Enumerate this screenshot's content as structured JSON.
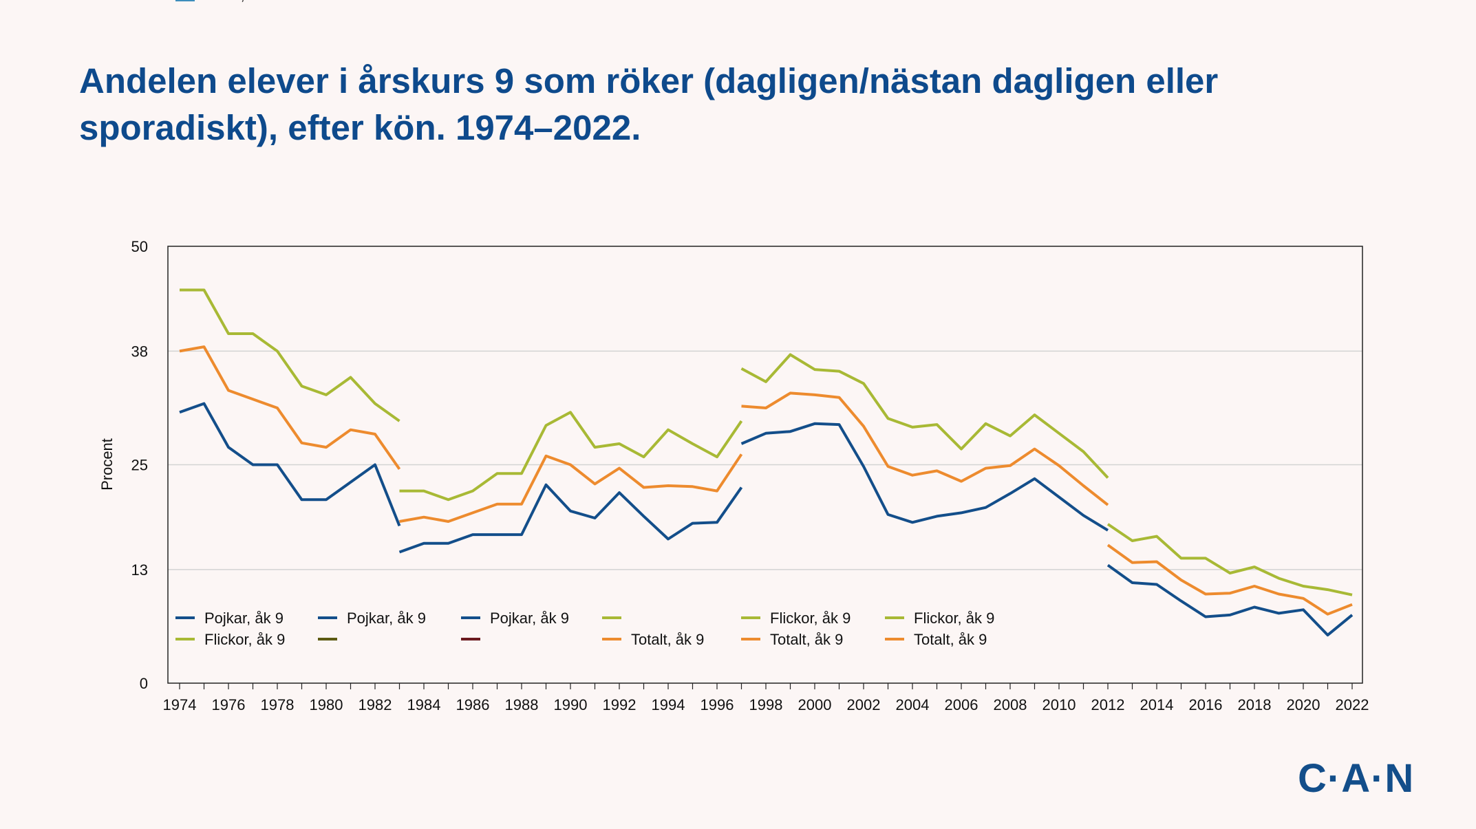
{
  "title": "Andelen elever i årskurs 9 som röker (dagligen/nästan dagligen eller sporadiskt), efter kön. 1974–2022.",
  "logo": "C·A·N",
  "colors": {
    "background": "#fcf6f5",
    "title": "#0e4a8c",
    "pojkar": "#134e8a",
    "flickor": "#a8b935",
    "totalt": "#ed8b2e",
    "grid": "#d3d3d3"
  },
  "chart_data": {
    "type": "line",
    "xlabel": "",
    "ylabel": "Procent",
    "xlim": [
      1974,
      2022
    ],
    "ylim": [
      0,
      50
    ],
    "yticks": [
      0,
      13,
      25,
      38,
      50
    ],
    "xticks": [
      1974,
      1976,
      1978,
      1980,
      1982,
      1984,
      1986,
      1988,
      1990,
      1992,
      1994,
      1996,
      1998,
      2000,
      2002,
      2004,
      2006,
      2008,
      2010,
      2012,
      2014,
      2016,
      2018,
      2020,
      2022
    ],
    "grid": true,
    "legend_position": "bottom-left inside plot",
    "series": [
      {
        "name": "Pojkar, åk 9",
        "color": "#134e8a",
        "x": [
          1974,
          1975,
          1976,
          1977,
          1978,
          1979,
          1980,
          1981,
          1982,
          1983
        ],
        "y": [
          31,
          32,
          27,
          25,
          25,
          21,
          21,
          23,
          25,
          18
        ]
      },
      {
        "name": "Pojkar, åk 9",
        "color": "#134e8a",
        "x": [
          1983,
          1984,
          1985,
          1986,
          1987,
          1988,
          1989,
          1990,
          1991,
          1992,
          1993,
          1994,
          1995,
          1996,
          1997
        ],
        "y": [
          15,
          16,
          16,
          17,
          17,
          17,
          22.7,
          19.7,
          18.9,
          21.8,
          19.1,
          16.5,
          18.3,
          18.4,
          22.4
        ]
      },
      {
        "name": "Pojkar, åk 9",
        "color": "#134e8a",
        "x": [
          1997,
          1998,
          1999,
          2000,
          2001,
          2002,
          2003,
          2004,
          2005,
          2006,
          2007,
          2008,
          2009,
          2010,
          2011,
          2012
        ],
        "y": [
          27.4,
          28.6,
          28.8,
          29.7,
          29.6,
          24.8,
          19.3,
          18.4,
          19.1,
          19.5,
          20.1,
          21.7,
          23.4,
          21.3,
          19.2,
          17.5
        ]
      },
      {
        "name": "",
        "color": "#a8b935",
        "x": [],
        "y": []
      },
      {
        "name": "Flickor, åk 9",
        "color": "#a8b935",
        "x": [
          1974,
          1975,
          1976,
          1977,
          1978,
          1979,
          1980,
          1981,
          1982,
          1983
        ],
        "y": [
          45,
          45,
          40,
          40,
          38,
          34,
          33,
          35,
          32,
          30
        ]
      },
      {
        "name": "Flickor, åk 9",
        "color": "#a8b935",
        "x": [
          1983,
          1984,
          1985,
          1986,
          1987,
          1988,
          1989,
          1990,
          1991,
          1992,
          1993,
          1994,
          1995,
          1996,
          1997
        ],
        "y": [
          22,
          22,
          21,
          22,
          24,
          24,
          29.5,
          31,
          27,
          27.4,
          25.9,
          29,
          27.4,
          25.9,
          30
        ]
      },
      {
        "name": "Flickor, åk 9",
        "color": "#a8b935",
        "x": [
          1997,
          1998,
          1999,
          2000,
          2001,
          2002,
          2003,
          2004,
          2005,
          2006,
          2007,
          2008,
          2009,
          2010,
          2011,
          2012
        ],
        "y": [
          36,
          34.5,
          37.6,
          35.9,
          35.7,
          34.3,
          30.3,
          29.3,
          29.6,
          26.8,
          29.7,
          28.3,
          30.7,
          28.6,
          26.5,
          23.5
        ]
      },
      {
        "name": "",
        "color": "#5c5a12",
        "x": [],
        "y": []
      },
      {
        "name": "",
        "color": "#6b1a1f",
        "x": [],
        "y": []
      },
      {
        "name": "Totalt, åk 9",
        "color": "#ed8b2e",
        "x": [
          1974,
          1975,
          1976,
          1977,
          1978,
          1979,
          1980,
          1981,
          1982,
          1983
        ],
        "y": [
          38,
          38.5,
          33.5,
          32.5,
          31.5,
          27.5,
          27,
          29,
          28.5,
          24.5
        ]
      },
      {
        "name": "Totalt, åk 9",
        "color": "#ed8b2e",
        "x": [
          1983,
          1984,
          1985,
          1986,
          1987,
          1988,
          1989,
          1990,
          1991,
          1992,
          1993,
          1994,
          1995,
          1996,
          1997
        ],
        "y": [
          18.5,
          19,
          18.5,
          19.5,
          20.5,
          20.5,
          26,
          25,
          22.8,
          24.6,
          22.4,
          22.6,
          22.5,
          22,
          26.2
        ]
      },
      {
        "name": "Totalt, åk 9",
        "color": "#ed8b2e",
        "x": [
          1997,
          1998,
          1999,
          2000,
          2001,
          2002,
          2003,
          2004,
          2005,
          2006,
          2007,
          2008,
          2009,
          2010,
          2011,
          2012
        ],
        "y": [
          31.7,
          31.5,
          33.2,
          33,
          32.7,
          29.4,
          24.8,
          23.8,
          24.3,
          23.1,
          24.6,
          24.9,
          26.8,
          24.9,
          22.6,
          20.4
        ]
      },
      {
        "name": "Totalt, åk 9",
        "color": "#3d8dbc",
        "x": [],
        "y": []
      }
    ],
    "extra_series": [
      {
        "name": "Pojkar, åk 9",
        "color": "#134e8a",
        "x": [
          2012,
          2013,
          2014,
          2015,
          2016,
          2017,
          2018,
          2019,
          2020,
          2021,
          2022
        ],
        "y": [
          13.5,
          11.5,
          11.3,
          9.4,
          7.6,
          7.8,
          8.7,
          8,
          8.4,
          5.5,
          7.8
        ]
      },
      {
        "name": "Flickor, åk 9",
        "color": "#a8b935",
        "x": [
          2012,
          2013,
          2014,
          2015,
          2016,
          2017,
          2018,
          2019,
          2020,
          2021,
          2022
        ],
        "y": [
          18.2,
          16.3,
          16.8,
          14.3,
          14.3,
          12.6,
          13.3,
          12,
          11.1,
          10.7,
          10.1
        ]
      },
      {
        "name": "Totalt, åk 9",
        "color": "#ed8b2e",
        "x": [
          2012,
          2013,
          2014,
          2015,
          2016,
          2017,
          2018,
          2019,
          2020,
          2021,
          2022
        ],
        "y": [
          15.8,
          13.8,
          13.9,
          11.8,
          10.2,
          10.3,
          11.1,
          10.2,
          9.7,
          7.9,
          9
        ]
      }
    ]
  }
}
